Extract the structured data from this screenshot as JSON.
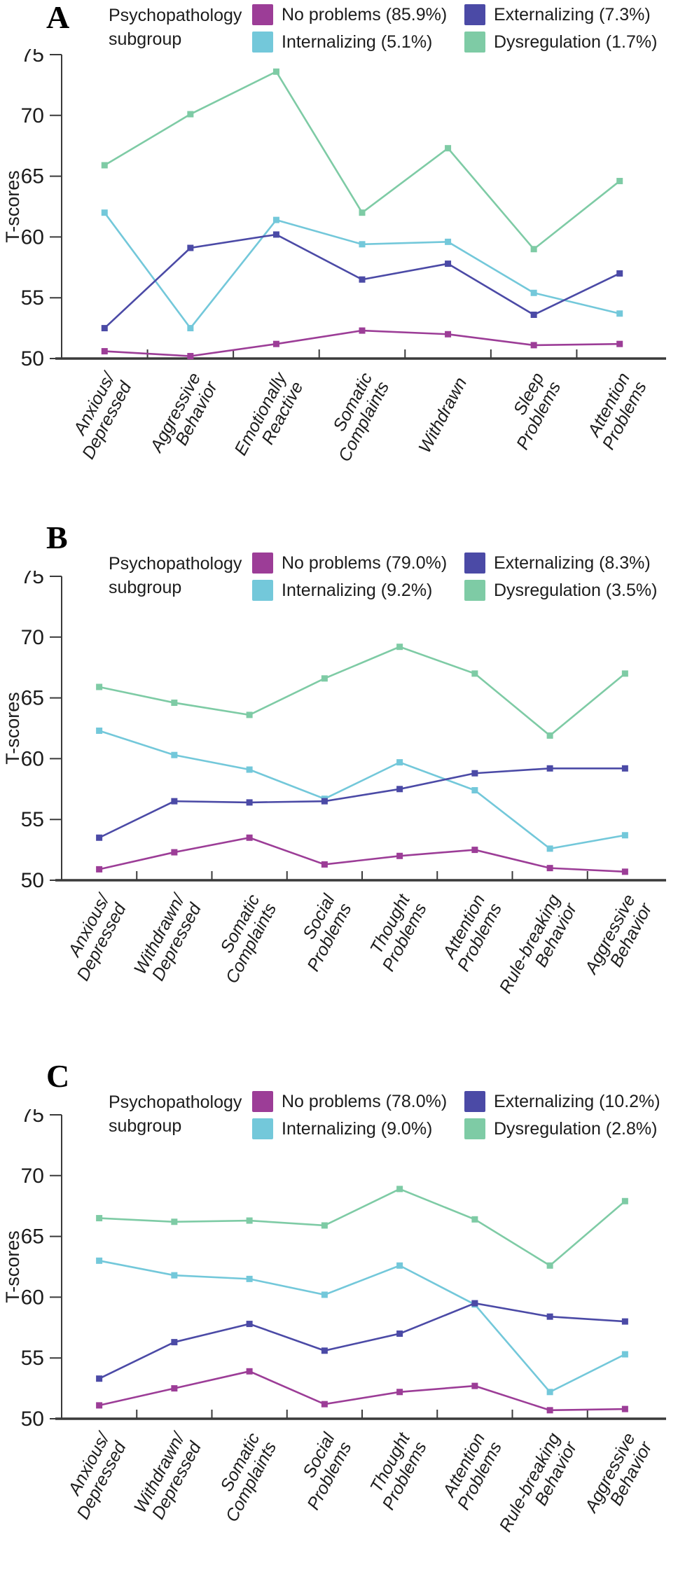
{
  "figure": {
    "y_axis_label": "T-scores",
    "legend_title": "Psychopathology subgroup",
    "colors": {
      "no_problems": "#9c3d97",
      "externalizing": "#4b4aa6",
      "internalizing": "#73c8da",
      "dysregulation": "#7ecba5",
      "axis": "#3a3a3a"
    }
  },
  "chart_data": [
    {
      "type": "line",
      "panel_label": "A",
      "legend_title": "Psychopathology subgroup",
      "ylabel": "T-scores",
      "xlabel": "",
      "ylim": [
        50,
        75
      ],
      "yticks": [
        50,
        55,
        60,
        65,
        70,
        75
      ],
      "grid": false,
      "marker": "square",
      "legend_position": "top",
      "categories": [
        [
          "Anxious/",
          "Depressed"
        ],
        [
          "Aggressive",
          "Behavior"
        ],
        [
          "Emotionally",
          "Reactive"
        ],
        [
          "Somatic",
          "Complaints"
        ],
        [
          "Withdrawn"
        ],
        [
          "Sleep",
          "Problems"
        ],
        [
          "Attention",
          "Problems"
        ]
      ],
      "series": [
        {
          "name": "No problems (85.9%)",
          "color": "#9c3d97",
          "values": [
            50.6,
            50.2,
            51.2,
            52.3,
            52.0,
            51.1,
            51.2
          ]
        },
        {
          "name": "Externalizing (7.3%)",
          "color": "#4b4aa6",
          "values": [
            52.5,
            59.1,
            60.2,
            56.5,
            57.8,
            53.6,
            57.0
          ]
        },
        {
          "name": "Internalizing (5.1%)",
          "color": "#73c8da",
          "values": [
            62.0,
            52.5,
            61.4,
            59.4,
            59.6,
            55.4,
            53.7
          ]
        },
        {
          "name": "Dysregulation (1.7%)",
          "color": "#7ecba5",
          "values": [
            65.9,
            70.1,
            73.6,
            62.0,
            67.3,
            59.0,
            64.6
          ]
        }
      ]
    },
    {
      "type": "line",
      "panel_label": "B",
      "legend_title": "Psychopathology subgroup",
      "ylabel": "T-scores",
      "xlabel": "",
      "ylim": [
        50,
        75
      ],
      "yticks": [
        50,
        55,
        60,
        65,
        70,
        75
      ],
      "grid": false,
      "marker": "square",
      "legend_position": "top",
      "categories": [
        [
          "Anxious/",
          "Depressed"
        ],
        [
          "Withdrawn/",
          "Depressed"
        ],
        [
          "Somatic",
          "Complaints"
        ],
        [
          "Social",
          "Problems"
        ],
        [
          "Thought",
          "Problems"
        ],
        [
          "Attention",
          "Problems"
        ],
        [
          "Rule-breaking",
          "Behavior"
        ],
        [
          "Aggressive",
          "Behavior"
        ]
      ],
      "series": [
        {
          "name": "No problems (79.0%)",
          "color": "#9c3d97",
          "values": [
            50.9,
            52.3,
            53.5,
            51.3,
            52.0,
            52.5,
            51.0,
            50.7
          ]
        },
        {
          "name": "Externalizing (8.3%)",
          "color": "#4b4aa6",
          "values": [
            53.5,
            56.5,
            56.4,
            56.5,
            57.5,
            58.8,
            59.2,
            59.2
          ]
        },
        {
          "name": "Internalizing (9.2%)",
          "color": "#73c8da",
          "values": [
            62.3,
            60.3,
            59.1,
            56.7,
            59.7,
            57.4,
            52.6,
            53.7
          ]
        },
        {
          "name": "Dysregulation (3.5%)",
          "color": "#7ecba5",
          "values": [
            65.9,
            64.6,
            63.6,
            66.6,
            69.2,
            67.0,
            61.9,
            67.0
          ]
        }
      ]
    },
    {
      "type": "line",
      "panel_label": "C",
      "legend_title": "Psychopathology subgroup",
      "ylabel": "T-scores",
      "xlabel": "",
      "ylim": [
        50,
        75
      ],
      "yticks": [
        50,
        55,
        60,
        65,
        70,
        75
      ],
      "grid": false,
      "marker": "square",
      "legend_position": "top",
      "categories": [
        [
          "Anxious/",
          "Depressed"
        ],
        [
          "Withdrawn/",
          "Depressed"
        ],
        [
          "Somatic",
          "Complaints"
        ],
        [
          "Social",
          "Problems"
        ],
        [
          "Thought",
          "Problems"
        ],
        [
          "Attention",
          "Problems"
        ],
        [
          "Rule-breaking",
          "Behavior"
        ],
        [
          "Aggressive",
          "Behavior"
        ]
      ],
      "series": [
        {
          "name": "No problems (78.0%)",
          "color": "#9c3d97",
          "values": [
            51.1,
            52.5,
            53.9,
            51.2,
            52.2,
            52.7,
            50.7,
            50.8
          ]
        },
        {
          "name": "Externalizing (10.2%)",
          "color": "#4b4aa6",
          "values": [
            53.3,
            56.3,
            57.8,
            55.6,
            57.0,
            59.5,
            58.4,
            58.0
          ]
        },
        {
          "name": "Internalizing (9.0%)",
          "color": "#73c8da",
          "values": [
            63.0,
            61.8,
            61.5,
            60.2,
            62.6,
            59.4,
            52.2,
            55.3
          ]
        },
        {
          "name": "Dysregulation (2.8%)",
          "color": "#7ecba5",
          "values": [
            66.5,
            66.2,
            66.3,
            65.9,
            68.9,
            66.4,
            62.6,
            67.9
          ]
        }
      ]
    }
  ]
}
